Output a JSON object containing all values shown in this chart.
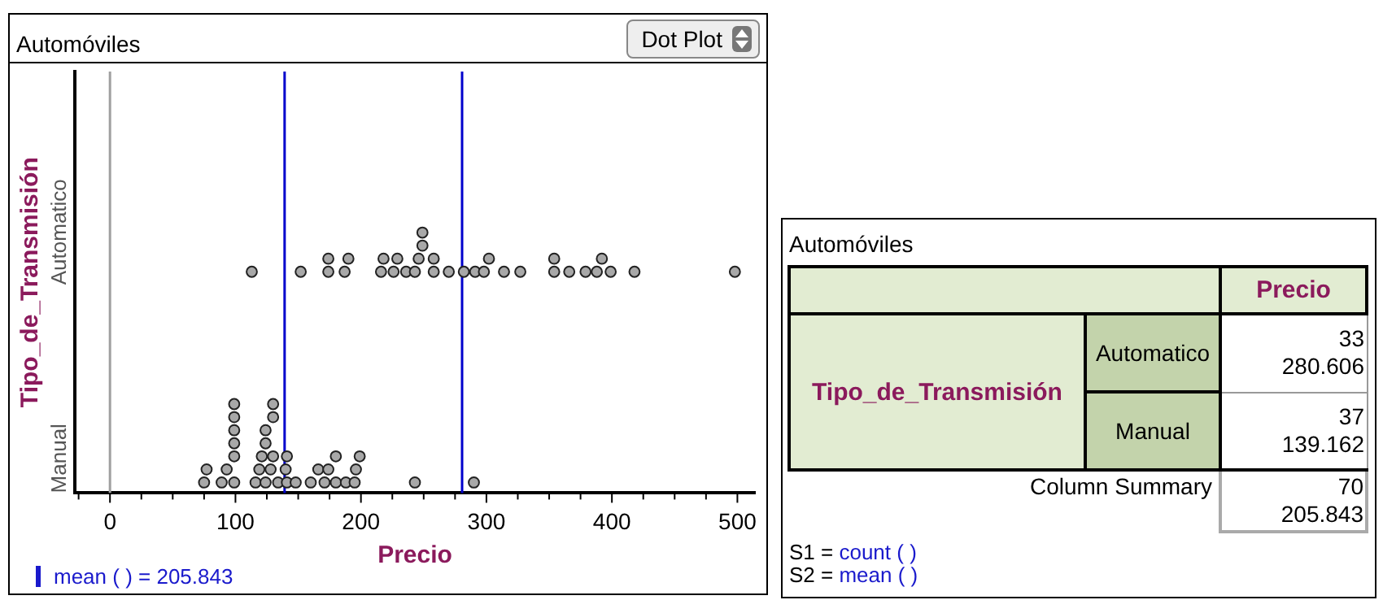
{
  "chart_data": [
    {
      "type": "scatter",
      "title": "Automóviles",
      "xlabel": "Precio",
      "ylabel": "Tipo_de_Transmisión",
      "marker": "circle",
      "orientation": "horizontal",
      "annotations": [
        "Dot Plot",
        "mean (   ) = 205.843"
      ],
      "categories": [
        "Automatico",
        "Manual"
      ],
      "series": [
        {
          "color": "#a8a8a8",
          "x": [
            "Automatico",
            "Automatico",
            "Automatico",
            "Automatico",
            "Automatico",
            "Automatico",
            "Automatico",
            "Automatico",
            "Automatico",
            "Automatico",
            "Automatico",
            "Automatico",
            "Automatico",
            "Automatico",
            "Automatico",
            "Automatico",
            "Automatico",
            "Automatico",
            "Automatico",
            "Automatico",
            "Automatico",
            "Automatico",
            "Automatico",
            "Automatico",
            "Automatico",
            "Automatico",
            "Automatico",
            "Automatico",
            "Automatico",
            "Automatico",
            "Automatico",
            "Automatico",
            "Automatico"
          ],
          "values": [
            113,
            152,
            174,
            174,
            187,
            190,
            216,
            218,
            226,
            229,
            236,
            243,
            246,
            249,
            249,
            258,
            258,
            270,
            282,
            291,
            298,
            302,
            314,
            327,
            354,
            354,
            366,
            379,
            388,
            392,
            399,
            418,
            498
          ]
        },
        {
          "color": "#a8a8a8",
          "x": [
            "Manual",
            "Manual",
            "Manual",
            "Manual",
            "Manual",
            "Manual",
            "Manual",
            "Manual",
            "Manual",
            "Manual",
            "Manual",
            "Manual",
            "Manual",
            "Manual",
            "Manual",
            "Manual",
            "Manual",
            "Manual",
            "Manual",
            "Manual",
            "Manual",
            "Manual",
            "Manual",
            "Manual",
            "Manual",
            "Manual",
            "Manual",
            "Manual",
            "Manual",
            "Manual",
            "Manual",
            "Manual",
            "Manual",
            "Manual",
            "Manual",
            "Manual",
            "Manual"
          ],
          "values": [
            75,
            77,
            89,
            93,
            99,
            99,
            99,
            99,
            99,
            99,
            116,
            119,
            121,
            124,
            124,
            124,
            128,
            130,
            130,
            130,
            134,
            140,
            141,
            141,
            148,
            160,
            166,
            171,
            174,
            180,
            180,
            188,
            195,
            196,
            199,
            243,
            290
          ]
        }
      ],
      "xlim": [
        -28,
        514
      ],
      "xticks": [
        {
          "value": -25,
          "label": null
        },
        0,
        {
          "value": 25,
          "label": null
        },
        {
          "value": 50,
          "label": null
        },
        {
          "value": 75,
          "label": null
        },
        100,
        {
          "value": 125,
          "label": null
        },
        {
          "value": 150,
          "label": null
        },
        {
          "value": 175,
          "label": null
        },
        200,
        {
          "value": 225,
          "label": null
        },
        {
          "value": 250,
          "label": null
        },
        {
          "value": 275,
          "label": null
        },
        300,
        {
          "value": 325,
          "label": null
        },
        {
          "value": 350,
          "label": null
        },
        {
          "value": 375,
          "label": null
        },
        400,
        {
          "value": 425,
          "label": null
        },
        {
          "value": 450,
          "label": null
        },
        {
          "value": 475,
          "label": null
        },
        500
      ],
      "ref_lines": [
        {
          "axis": "x",
          "value": 0,
          "color": "#a0a0a0"
        },
        {
          "axis": "x",
          "value": 280.606,
          "color": "#0000cc"
        },
        {
          "axis": "x",
          "value": 139.162,
          "color": "#0000cc"
        }
      ]
    },
    {
      "type": "other",
      "title": "Automóviles",
      "annotations": [
        "Precio",
        "Tipo_de_Transmisión",
        "Automatico",
        "33",
        "280.606",
        "Manual",
        "37",
        "139.162",
        "Column Summary",
        "70",
        "205.843",
        "S1 = ",
        "count (   )",
        "S2 = ",
        "mean (   )"
      ]
    }
  ]
}
